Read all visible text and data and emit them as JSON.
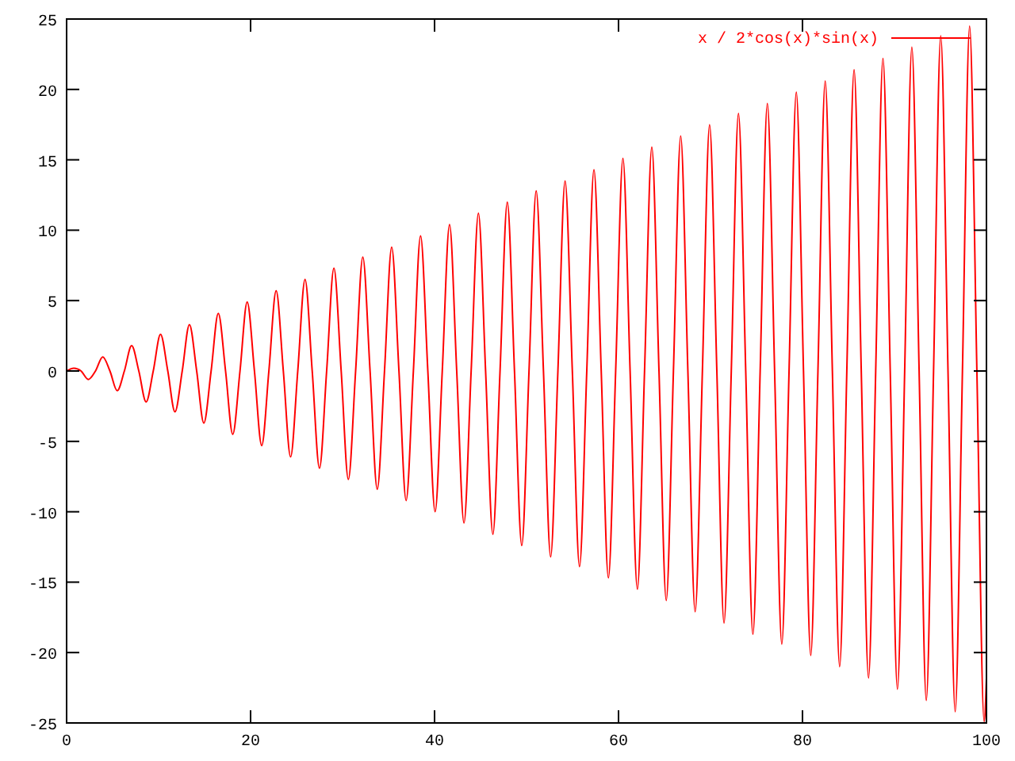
{
  "chart_data": {
    "type": "line",
    "xlim": [
      0,
      100
    ],
    "ylim": [
      -25,
      25
    ],
    "xticks": [
      0,
      20,
      40,
      60,
      80,
      100
    ],
    "yticks": [
      -25,
      -20,
      -15,
      -10,
      -5,
      0,
      5,
      10,
      15,
      20,
      25
    ],
    "grid": false,
    "legend": "top right",
    "marker": "none",
    "line_style": "solid",
    "series": [
      {
        "name": "x / 2*cos(x)*sin(x)",
        "color": "#ff0000",
        "x": [
          0,
          0.79,
          1.57,
          2.36,
          3.14,
          3.93,
          4.71,
          5.5,
          6.28,
          7.07,
          7.85,
          8.64,
          9.42,
          10.21,
          11,
          11.78,
          12.57,
          13.35,
          14.14,
          14.92,
          15.71,
          16.49,
          17.28,
          18.06,
          18.85,
          19.63,
          20.42,
          21.21,
          21.99,
          22.78,
          23.56,
          24.35,
          25.13,
          25.92,
          26.7,
          27.49,
          28.27,
          29.06,
          29.85,
          30.63,
          31.42,
          32.2,
          32.99,
          33.77,
          34.56,
          35.34,
          36.13,
          36.91,
          37.7,
          38.48,
          39.27,
          40.06,
          40.84,
          41.63,
          42.41,
          43.2,
          43.98,
          44.77,
          45.55,
          46.34,
          47.12,
          47.91,
          48.69,
          49.48,
          50.27,
          51.05,
          51.84,
          52.62,
          53.41,
          54.19,
          54.98,
          55.76,
          56.55,
          57.33,
          58.12,
          58.9,
          59.69,
          60.48,
          61.26,
          62.05,
          62.83,
          63.62,
          64.4,
          65.19,
          65.97,
          66.76,
          67.54,
          68.33,
          69.12,
          69.9,
          70.69,
          71.47,
          72.26,
          73.04,
          73.83,
          74.61,
          75.4,
          76.18,
          76.97,
          77.75,
          78.54,
          79.33,
          80.11,
          80.9,
          81.68,
          82.47,
          83.25,
          84.04,
          84.82,
          85.61,
          86.39,
          87.18,
          87.96,
          88.75,
          89.54,
          90.32,
          91.11,
          91.89,
          92.68,
          93.46,
          94.25,
          95.03,
          95.82,
          96.6,
          97.39,
          98.17,
          98.96,
          99.75,
          100
        ],
        "values": [
          0,
          0.2,
          0,
          -0.6,
          0,
          1,
          0,
          -1.4,
          0,
          1.8,
          0,
          -2.2,
          0,
          2.6,
          0,
          -2.9,
          0,
          3.3,
          0,
          -3.7,
          0,
          4.1,
          0,
          -4.5,
          0,
          4.9,
          0,
          -5.3,
          0,
          5.7,
          0,
          -6.1,
          0,
          6.5,
          0,
          -6.9,
          0,
          7.3,
          0,
          -7.7,
          0,
          8.1,
          0,
          -8.4,
          0,
          8.8,
          0,
          -9.2,
          0,
          9.6,
          0,
          -10,
          0,
          10.4,
          0,
          -10.8,
          0,
          11.2,
          0,
          -11.6,
          0,
          12,
          0,
          -12.4,
          0,
          12.8,
          0,
          -13.2,
          0,
          13.5,
          0,
          -13.9,
          0,
          14.3,
          0,
          -14.7,
          0,
          15.1,
          0,
          -15.5,
          0,
          15.9,
          0,
          -16.3,
          0,
          16.7,
          0,
          -17.1,
          0,
          17.5,
          0,
          -17.9,
          0,
          18.3,
          0,
          -18.7,
          0,
          19,
          0,
          -19.4,
          0,
          19.8,
          0,
          -20.2,
          0,
          20.6,
          0,
          -21,
          0,
          21.4,
          0,
          -21.8,
          0,
          22.2,
          0,
          -22.6,
          0,
          23,
          0,
          -23.4,
          0,
          23.8,
          0,
          -24.2,
          0,
          24.5,
          0,
          -24.9,
          -21.8
        ]
      }
    ]
  }
}
